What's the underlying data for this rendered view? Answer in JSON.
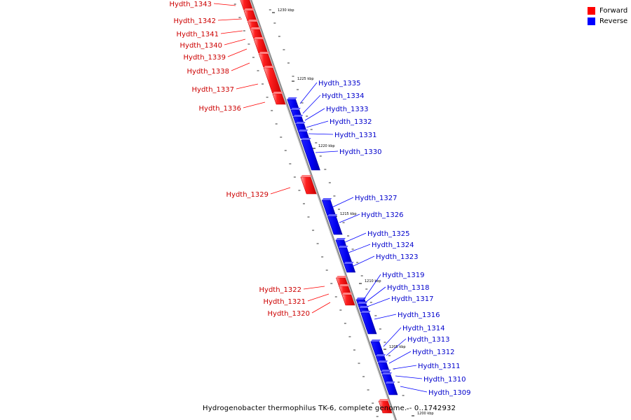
{
  "colors": {
    "forward": "#ff0000",
    "reverse": "#0000ff",
    "axis": "#888888"
  },
  "legend": [
    {
      "label": "Forward",
      "color": "#ff0000"
    },
    {
      "label": "Reverse",
      "color": "#0000ff"
    }
  ],
  "title": "Hydrogenobacter thermophilus TK-6, complete genome. - 0..1742932",
  "ticks": [
    {
      "label": "1230 kbp"
    },
    {
      "label": "1225 kbp"
    },
    {
      "label": "1220 kbp"
    },
    {
      "label": "1215 kbp"
    },
    {
      "label": "1210 kbp"
    },
    {
      "label": "1205 kbp"
    },
    {
      "label": "1200 kbp"
    }
  ],
  "forward_genes": [
    {
      "label": "Hydth_1343"
    },
    {
      "label": "Hydth_1342"
    },
    {
      "label": "Hydth_1341"
    },
    {
      "label": "Hydth_1340"
    },
    {
      "label": "Hydth_1339"
    },
    {
      "label": "Hydth_1338"
    },
    {
      "label": "Hydth_1337"
    },
    {
      "label": "Hydth_1336"
    },
    {
      "label": "Hydth_1329"
    },
    {
      "label": "Hydth_1322"
    },
    {
      "label": "Hydth_1321"
    },
    {
      "label": "Hydth_1320"
    }
  ],
  "reverse_genes": [
    {
      "label": "Hydth_1335"
    },
    {
      "label": "Hydth_1334"
    },
    {
      "label": "Hydth_1333"
    },
    {
      "label": "Hydth_1332"
    },
    {
      "label": "Hydth_1331"
    },
    {
      "label": "Hydth_1330"
    },
    {
      "label": "Hydth_1327"
    },
    {
      "label": "Hydth_1326"
    },
    {
      "label": "Hydth_1325"
    },
    {
      "label": "Hydth_1324"
    },
    {
      "label": "Hydth_1323"
    },
    {
      "label": "Hydth_1319"
    },
    {
      "label": "Hydth_1318"
    },
    {
      "label": "Hydth_1317"
    },
    {
      "label": "Hydth_1316"
    },
    {
      "label": "Hydth_1314"
    },
    {
      "label": "Hydth_1313"
    },
    {
      "label": "Hydth_1312"
    },
    {
      "label": "Hydth_1311"
    },
    {
      "label": "Hydth_1310"
    },
    {
      "label": "Hydth_1309"
    }
  ]
}
